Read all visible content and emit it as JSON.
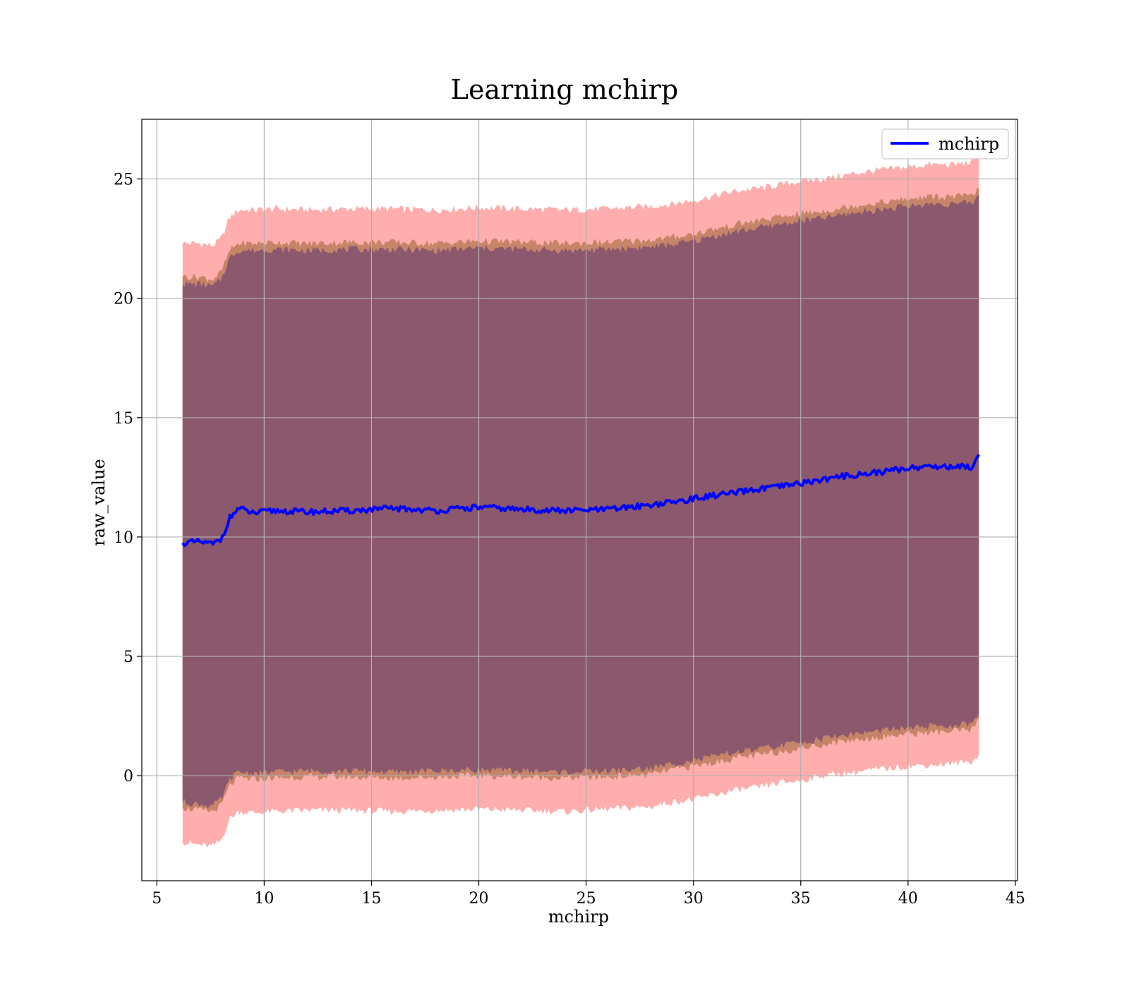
{
  "chart_data": {
    "type": "line",
    "title": "Learning mchirp",
    "xlabel": "mchirp",
    "ylabel": "raw_value",
    "xlim": [
      4.3,
      45.1
    ],
    "ylim": [
      -4.4,
      27.5
    ],
    "xticks": [
      5,
      10,
      15,
      20,
      25,
      30,
      35,
      40,
      45
    ],
    "yticks": [
      0,
      5,
      10,
      15,
      20,
      25
    ],
    "grid": true,
    "legend_position": "top-right",
    "series": [
      {
        "name": "mchirp",
        "color": "#0000ff",
        "x": [
          6.2,
          7.0,
          7.6,
          8.0,
          8.4,
          8.8,
          9.5,
          10.5,
          12.0,
          14.0,
          16.0,
          18.0,
          20.0,
          22.0,
          24.0,
          26.0,
          28.0,
          29.0,
          30.0,
          31.0,
          32.0,
          33.0,
          34.0,
          35.0,
          36.0,
          37.0,
          38.0,
          39.0,
          40.0,
          41.0,
          42.0,
          43.0,
          43.3
        ],
        "values": [
          9.75,
          9.8,
          9.7,
          9.9,
          10.8,
          11.2,
          11.0,
          11.1,
          11.05,
          11.1,
          11.2,
          11.1,
          11.25,
          11.15,
          11.1,
          11.15,
          11.35,
          11.45,
          11.6,
          11.75,
          11.85,
          12.0,
          12.1,
          12.25,
          12.4,
          12.55,
          12.65,
          12.75,
          12.9,
          12.95,
          12.95,
          12.95,
          13.45
        ]
      }
    ],
    "bands": [
      {
        "color": "#ff9999",
        "x": [
          6.2,
          7.0,
          7.6,
          8.0,
          8.4,
          8.8,
          9.5,
          10.5,
          12.0,
          14.0,
          16.0,
          18.0,
          20.0,
          22.0,
          24.0,
          26.0,
          28.0,
          29.0,
          30.0,
          31.0,
          32.0,
          33.0,
          34.0,
          35.0,
          36.0,
          37.0,
          38.0,
          39.0,
          40.0,
          41.0,
          42.0,
          43.0,
          43.3
        ],
        "lower": [
          -2.8,
          -2.9,
          -2.95,
          -2.7,
          -1.8,
          -1.5,
          -1.55,
          -1.5,
          -1.45,
          -1.45,
          -1.5,
          -1.45,
          -1.4,
          -1.45,
          -1.5,
          -1.4,
          -1.3,
          -1.1,
          -1.0,
          -0.8,
          -0.6,
          -0.5,
          -0.3,
          -0.2,
          0.0,
          0.1,
          0.2,
          0.3,
          0.4,
          0.45,
          0.5,
          0.6,
          0.9
        ],
        "upper": [
          22.3,
          22.3,
          22.2,
          22.5,
          23.4,
          23.7,
          23.7,
          23.75,
          23.7,
          23.75,
          23.75,
          23.7,
          23.8,
          23.75,
          23.7,
          23.75,
          23.85,
          23.95,
          24.1,
          24.3,
          24.5,
          24.6,
          24.75,
          24.9,
          25.0,
          25.15,
          25.3,
          25.4,
          25.5,
          25.6,
          25.6,
          25.7,
          26.0
        ]
      },
      {
        "color": "#c08060",
        "x": [
          6.2,
          7.0,
          7.6,
          8.0,
          8.4,
          8.8,
          9.5,
          10.5,
          12.0,
          14.0,
          16.0,
          18.0,
          20.0,
          22.0,
          24.0,
          26.0,
          28.0,
          29.0,
          30.0,
          31.0,
          32.0,
          33.0,
          34.0,
          35.0,
          36.0,
          37.0,
          38.0,
          39.0,
          40.0,
          41.0,
          42.0,
          43.0,
          43.3
        ],
        "lower": [
          -1.35,
          -1.45,
          -1.5,
          -1.25,
          -0.4,
          -0.1,
          -0.15,
          -0.1,
          -0.05,
          -0.05,
          -0.1,
          -0.05,
          0.0,
          -0.05,
          -0.1,
          -0.05,
          0.05,
          0.25,
          0.4,
          0.55,
          0.75,
          0.85,
          1.0,
          1.15,
          1.3,
          1.45,
          1.55,
          1.65,
          1.75,
          1.8,
          1.85,
          1.9,
          2.4
        ],
        "upper": [
          20.9,
          20.9,
          20.8,
          21.1,
          22.0,
          22.3,
          22.3,
          22.35,
          22.3,
          22.35,
          22.35,
          22.3,
          22.4,
          22.35,
          22.3,
          22.35,
          22.45,
          22.55,
          22.7,
          22.9,
          23.1,
          23.25,
          23.4,
          23.55,
          23.65,
          23.8,
          23.95,
          24.05,
          24.15,
          24.25,
          24.25,
          24.3,
          24.6
        ]
      },
      {
        "color": "#805070",
        "x": [
          6.2,
          7.0,
          7.6,
          8.0,
          8.4,
          8.8,
          9.5,
          10.5,
          12.0,
          14.0,
          16.0,
          18.0,
          20.0,
          22.0,
          24.0,
          26.0,
          28.0,
          29.0,
          30.0,
          31.0,
          32.0,
          33.0,
          34.0,
          35.0,
          36.0,
          37.0,
          38.0,
          39.0,
          40.0,
          41.0,
          42.0,
          43.0,
          43.3
        ],
        "lower": [
          -1.1,
          -1.2,
          -1.25,
          -1.0,
          -0.15,
          0.15,
          0.1,
          0.15,
          0.2,
          0.2,
          0.15,
          0.2,
          0.25,
          0.2,
          0.15,
          0.2,
          0.3,
          0.5,
          0.65,
          0.8,
          1.0,
          1.1,
          1.25,
          1.4,
          1.55,
          1.7,
          1.8,
          1.9,
          2.0,
          2.05,
          2.1,
          2.15,
          2.6
        ],
        "upper": [
          20.6,
          20.6,
          20.5,
          20.8,
          21.7,
          22.0,
          22.0,
          22.05,
          22.0,
          22.05,
          22.05,
          22.0,
          22.1,
          22.05,
          22.0,
          22.05,
          22.15,
          22.25,
          22.4,
          22.6,
          22.8,
          22.95,
          23.1,
          23.25,
          23.35,
          23.5,
          23.65,
          23.75,
          23.85,
          23.95,
          23.95,
          24.0,
          24.3
        ]
      }
    ]
  }
}
